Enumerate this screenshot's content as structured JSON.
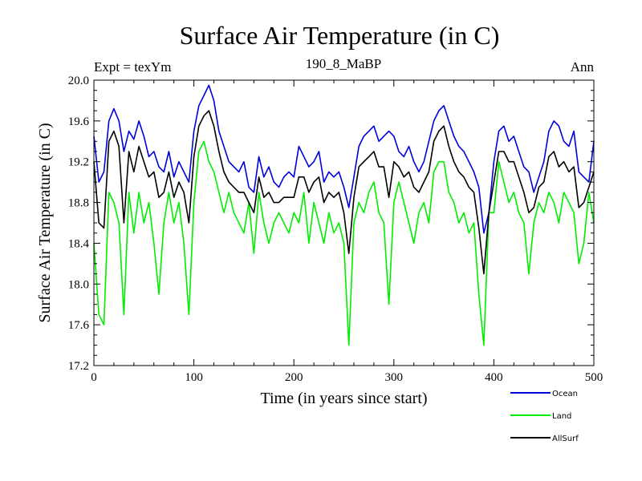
{
  "header": {
    "title": "Surface Air Temperature (in C)",
    "subtitle": "190_8_MaBP",
    "expt": "Expt = texYm",
    "season": "Ann"
  },
  "chart_data": {
    "type": "line",
    "title": "Surface Air Temperature (in C)",
    "subtitle": "190_8_MaBP",
    "xlabel": "Time (in years since start)",
    "ylabel": "Surface Air Temperature (in C)",
    "xlim": [
      0,
      500
    ],
    "ylim": [
      17.2,
      20.0
    ],
    "xticks": [
      "0",
      "100",
      "200",
      "300",
      "400",
      "500"
    ],
    "yticks": [
      "17.2",
      "17.6",
      "18.0",
      "18.4",
      "18.8",
      "19.2",
      "19.6",
      "20.0"
    ],
    "grid": false,
    "legend_position": "bottom-right",
    "series": [
      {
        "name": "Ocean",
        "color": "#0000dd",
        "x": [
          0,
          5,
          10,
          15,
          20,
          25,
          30,
          35,
          40,
          45,
          50,
          55,
          60,
          65,
          70,
          75,
          80,
          85,
          90,
          95,
          100,
          105,
          110,
          115,
          120,
          125,
          130,
          135,
          140,
          145,
          150,
          155,
          160,
          165,
          170,
          175,
          180,
          185,
          190,
          195,
          200,
          205,
          210,
          215,
          220,
          225,
          230,
          235,
          240,
          245,
          250,
          255,
          260,
          265,
          270,
          275,
          280,
          285,
          290,
          295,
          300,
          305,
          310,
          315,
          320,
          325,
          330,
          335,
          340,
          345,
          350,
          355,
          360,
          365,
          370,
          375,
          380,
          385,
          390,
          395,
          400,
          405,
          410,
          415,
          420,
          425,
          430,
          435,
          440,
          445,
          450,
          455,
          460,
          465,
          470,
          475,
          480,
          485,
          490,
          495,
          500
        ],
        "values": [
          19.45,
          19.0,
          19.1,
          19.6,
          19.72,
          19.6,
          19.3,
          19.5,
          19.42,
          19.6,
          19.45,
          19.25,
          19.3,
          19.15,
          19.1,
          19.3,
          19.05,
          19.2,
          19.1,
          19.0,
          19.5,
          19.75,
          19.85,
          19.95,
          19.8,
          19.5,
          19.35,
          19.2,
          19.15,
          19.1,
          19.2,
          18.95,
          18.9,
          19.25,
          19.05,
          19.15,
          19.0,
          18.95,
          19.05,
          19.1,
          19.05,
          19.35,
          19.25,
          19.15,
          19.2,
          19.3,
          19.0,
          19.1,
          19.05,
          19.1,
          18.95,
          18.75,
          19.05,
          19.35,
          19.45,
          19.5,
          19.55,
          19.4,
          19.45,
          19.5,
          19.45,
          19.3,
          19.25,
          19.35,
          19.2,
          19.1,
          19.2,
          19.4,
          19.6,
          19.7,
          19.75,
          19.6,
          19.45,
          19.35,
          19.3,
          19.2,
          19.1,
          18.95,
          18.5,
          18.7,
          19.2,
          19.5,
          19.55,
          19.4,
          19.45,
          19.3,
          19.15,
          19.1,
          18.9,
          19.05,
          19.2,
          19.5,
          19.6,
          19.55,
          19.4,
          19.35,
          19.5,
          19.1,
          19.05,
          19.0,
          19.4
        ]
      },
      {
        "name": "Land",
        "color": "#00ee00",
        "x": [
          0,
          5,
          10,
          15,
          20,
          25,
          30,
          35,
          40,
          45,
          50,
          55,
          60,
          65,
          70,
          75,
          80,
          85,
          90,
          95,
          100,
          105,
          110,
          115,
          120,
          125,
          130,
          135,
          140,
          145,
          150,
          155,
          160,
          165,
          170,
          175,
          180,
          185,
          190,
          195,
          200,
          205,
          210,
          215,
          220,
          225,
          230,
          235,
          240,
          245,
          250,
          255,
          260,
          265,
          270,
          275,
          280,
          285,
          290,
          295,
          300,
          305,
          310,
          315,
          320,
          325,
          330,
          335,
          340,
          345,
          350,
          355,
          360,
          365,
          370,
          375,
          380,
          385,
          390,
          395,
          400,
          405,
          410,
          415,
          420,
          425,
          430,
          435,
          440,
          445,
          450,
          455,
          460,
          465,
          470,
          475,
          480,
          485,
          490,
          495,
          500
        ],
        "values": [
          18.4,
          17.7,
          17.6,
          18.9,
          18.8,
          18.6,
          17.7,
          18.9,
          18.5,
          18.9,
          18.6,
          18.8,
          18.4,
          17.9,
          18.6,
          18.9,
          18.6,
          18.8,
          18.4,
          17.7,
          18.8,
          19.3,
          19.4,
          19.2,
          19.1,
          18.9,
          18.7,
          18.9,
          18.7,
          18.6,
          18.5,
          18.8,
          18.3,
          18.9,
          18.6,
          18.4,
          18.6,
          18.7,
          18.6,
          18.5,
          18.7,
          18.6,
          18.9,
          18.4,
          18.8,
          18.6,
          18.4,
          18.7,
          18.5,
          18.6,
          18.4,
          17.4,
          18.6,
          18.8,
          18.7,
          18.9,
          19.0,
          18.7,
          18.6,
          17.8,
          18.8,
          19.0,
          18.8,
          18.6,
          18.4,
          18.7,
          18.8,
          18.6,
          19.1,
          19.2,
          19.2,
          18.9,
          18.8,
          18.6,
          18.7,
          18.5,
          18.6,
          17.9,
          17.4,
          18.7,
          18.7,
          19.2,
          19.0,
          18.8,
          18.9,
          18.7,
          18.6,
          18.1,
          18.6,
          18.8,
          18.7,
          18.9,
          18.8,
          18.6,
          18.9,
          18.8,
          18.7,
          18.2,
          18.4,
          18.9,
          18.6
        ]
      },
      {
        "name": "AllSurf",
        "color": "#000000",
        "x": [
          0,
          5,
          10,
          15,
          20,
          25,
          30,
          35,
          40,
          45,
          50,
          55,
          60,
          65,
          70,
          75,
          80,
          85,
          90,
          95,
          100,
          105,
          110,
          115,
          120,
          125,
          130,
          135,
          140,
          145,
          150,
          155,
          160,
          165,
          170,
          175,
          180,
          185,
          190,
          195,
          200,
          205,
          210,
          215,
          220,
          225,
          230,
          235,
          240,
          245,
          250,
          255,
          260,
          265,
          270,
          275,
          280,
          285,
          290,
          295,
          300,
          305,
          310,
          315,
          320,
          325,
          330,
          335,
          340,
          345,
          350,
          355,
          360,
          365,
          370,
          375,
          380,
          385,
          390,
          395,
          400,
          405,
          410,
          415,
          420,
          425,
          430,
          435,
          440,
          445,
          450,
          455,
          460,
          465,
          470,
          475,
          480,
          485,
          490,
          495,
          500
        ],
        "values": [
          19.2,
          18.6,
          18.55,
          19.4,
          19.5,
          19.35,
          18.6,
          19.3,
          19.1,
          19.35,
          19.2,
          19.05,
          19.1,
          18.85,
          18.9,
          19.1,
          18.85,
          19.0,
          18.9,
          18.6,
          19.25,
          19.55,
          19.65,
          19.7,
          19.55,
          19.3,
          19.1,
          19.0,
          18.95,
          18.9,
          18.9,
          18.8,
          18.7,
          19.05,
          18.85,
          18.9,
          18.8,
          18.8,
          18.85,
          18.85,
          18.85,
          19.05,
          19.05,
          18.9,
          19.0,
          19.05,
          18.8,
          18.9,
          18.85,
          18.9,
          18.7,
          18.3,
          18.85,
          19.15,
          19.2,
          19.25,
          19.3,
          19.15,
          19.15,
          18.85,
          19.2,
          19.15,
          19.05,
          19.1,
          18.95,
          18.9,
          19.0,
          19.1,
          19.4,
          19.5,
          19.55,
          19.35,
          19.2,
          19.1,
          19.05,
          18.95,
          18.9,
          18.55,
          18.1,
          18.7,
          19.0,
          19.3,
          19.3,
          19.2,
          19.2,
          19.05,
          18.9,
          18.7,
          18.75,
          18.95,
          19.0,
          19.25,
          19.3,
          19.15,
          19.2,
          19.1,
          19.15,
          18.75,
          18.8,
          18.95,
          19.1
        ]
      }
    ]
  }
}
